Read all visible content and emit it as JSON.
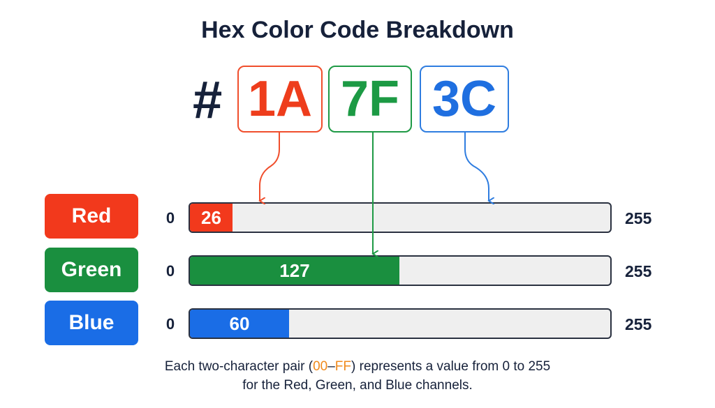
{
  "title": "Hex Color Code Breakdown",
  "hex": {
    "hash": "#",
    "pairs": [
      {
        "text": "1A",
        "color": "#ee3d1c"
      },
      {
        "text": "7F",
        "color": "#1c9a44"
      },
      {
        "text": "3C",
        "color": "#1f6fe0"
      }
    ]
  },
  "scale": {
    "min": "0",
    "max": "255",
    "max_value": 255
  },
  "channels": [
    {
      "label": "Red",
      "value": 26,
      "value_text": "26",
      "color": "#f2391c"
    },
    {
      "label": "Green",
      "value": 127,
      "value_text": "127",
      "color": "#1a8f3f"
    },
    {
      "label": "Blue",
      "value": 60,
      "value_text": "60",
      "color": "#1a6de6"
    }
  ],
  "footer": {
    "line1_before": "Each two-character pair (",
    "line1_range_start": "00",
    "line1_dash": "–",
    "line1_range_end": "FF",
    "line1_after": ") represents a value from 0 to 255",
    "line2": "for the Red, Green, and Blue channels."
  }
}
